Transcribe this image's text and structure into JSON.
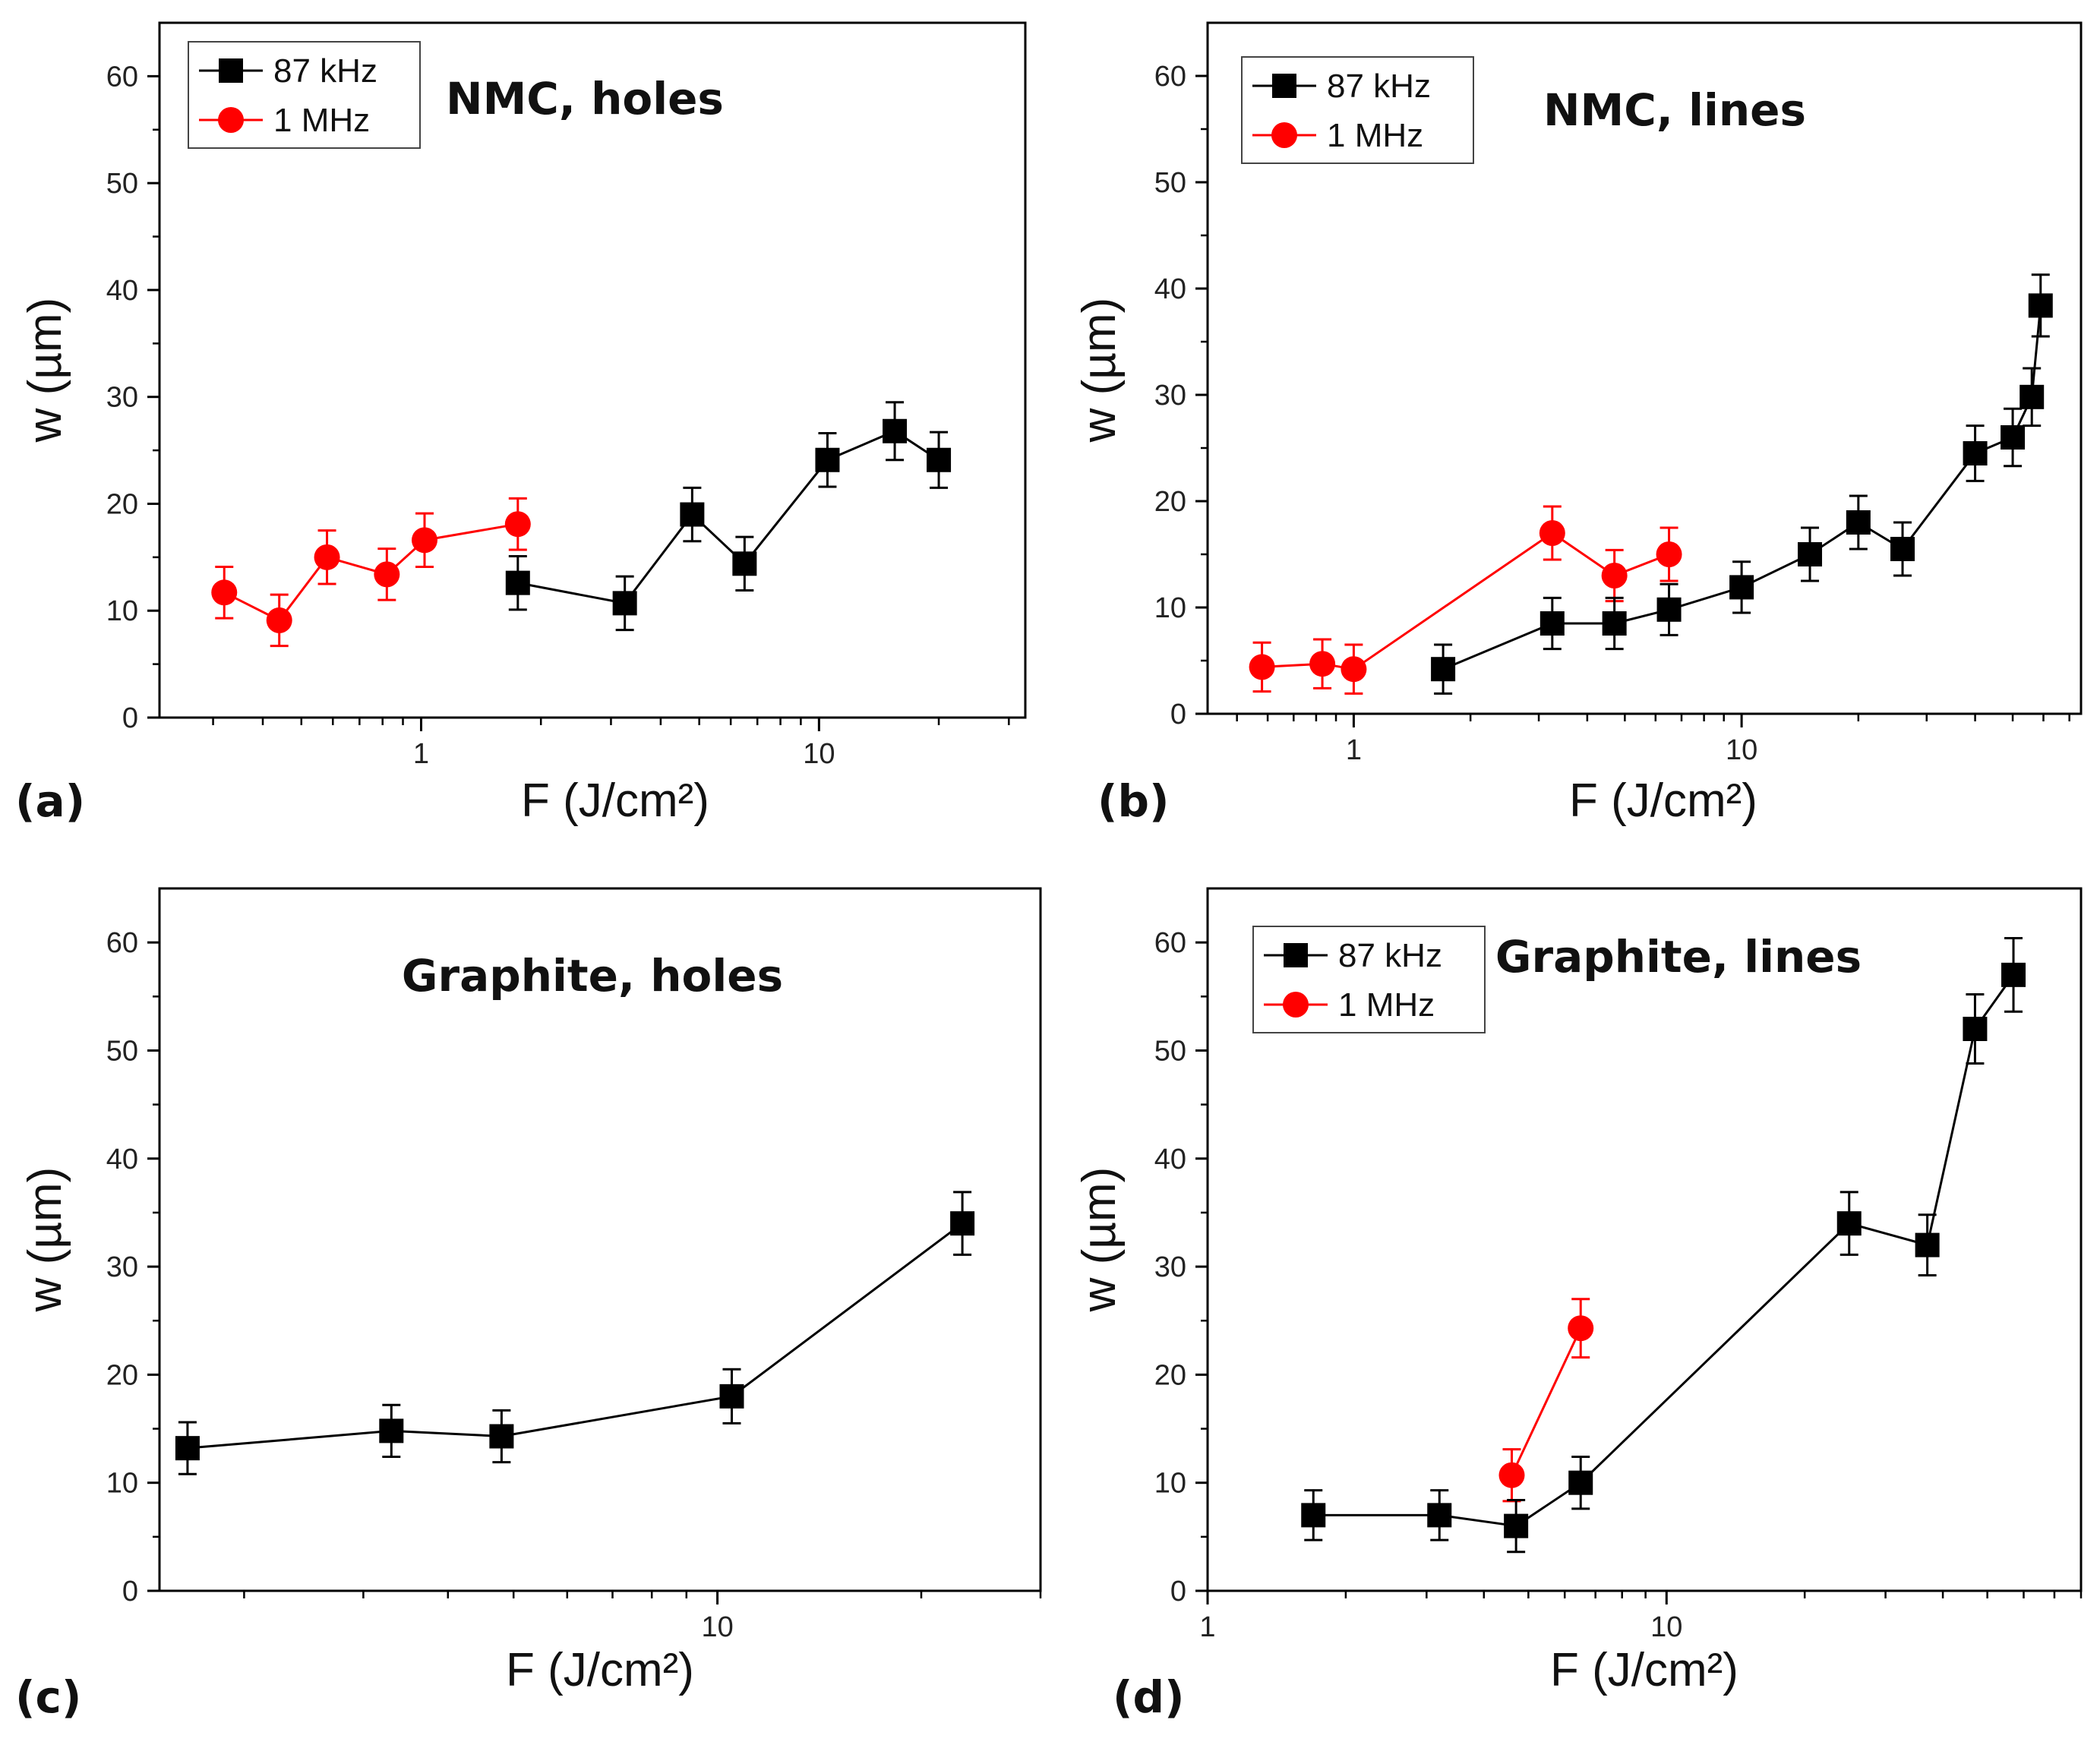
{
  "figure": {
    "colors": {
      "s87": "#000000",
      "s1": "#ff0000",
      "axis": "#000000"
    },
    "legend_labels": [
      "87 kHz",
      "1 MHz"
    ]
  },
  "chart_data": [
    {
      "type": "line",
      "panel_label": "(a)",
      "title": "NMC, holes",
      "xlabel": "F (J/cm²)",
      "ylabel": "w (µm)",
      "xscale": "log",
      "xlim": [
        0.22,
        33
      ],
      "ylim": [
        0,
        65
      ],
      "x_ticks": [
        1,
        10
      ],
      "x_tick_labels": [
        "1",
        "10"
      ],
      "y_ticks": [
        0,
        10,
        20,
        30,
        40,
        50,
        60
      ],
      "legend": true,
      "legend_position": "top-left",
      "series": [
        {
          "name": "87 kHz",
          "marker": "square",
          "color": "#000000",
          "x": [
            1.75,
            3.25,
            4.8,
            6.5,
            10.5,
            15.5,
            20
          ],
          "y": [
            12.6,
            10.7,
            19,
            14.4,
            24.1,
            26.8,
            24.1
          ],
          "err": [
            2.5,
            2.5,
            2.5,
            2.5,
            2.5,
            2.7,
            2.6
          ]
        },
        {
          "name": "1 MHz",
          "marker": "circle",
          "color": "#ff0000",
          "x": [
            0.32,
            0.44,
            0.58,
            0.82,
            1.02,
            1.75
          ],
          "y": [
            11.7,
            9.1,
            15,
            13.4,
            16.6,
            18.1
          ],
          "err": [
            2.4,
            2.4,
            2.5,
            2.4,
            2.5,
            2.4
          ]
        }
      ]
    },
    {
      "type": "line",
      "panel_label": "(b)",
      "title": "NMC, lines",
      "xlabel": "F (J/cm²)",
      "ylabel": "w (µm)",
      "xscale": "log",
      "xlim": [
        0.42,
        75
      ],
      "ylim": [
        0,
        65
      ],
      "x_ticks": [
        1,
        10
      ],
      "x_tick_labels": [
        "1",
        "10"
      ],
      "y_ticks": [
        0,
        10,
        20,
        30,
        40,
        50,
        60
      ],
      "legend": true,
      "legend_position": "top-left",
      "series": [
        {
          "name": "87 kHz",
          "marker": "square",
          "color": "#000000",
          "x": [
            1.7,
            3.25,
            4.7,
            6.5,
            10,
            15,
            20,
            26,
            40,
            50,
            56,
            59
          ],
          "y": [
            4.2,
            8.5,
            8.5,
            9.8,
            11.9,
            15,
            18,
            15.5,
            24.5,
            26,
            29.8,
            38.4
          ],
          "err": [
            2.3,
            2.4,
            2.4,
            2.4,
            2.4,
            2.5,
            2.5,
            2.5,
            2.6,
            2.7,
            2.7,
            2.9
          ]
        },
        {
          "name": "1 MHz",
          "marker": "circle",
          "color": "#ff0000",
          "x": [
            0.58,
            0.83,
            1.0,
            3.25,
            4.7,
            6.5
          ],
          "y": [
            4.4,
            4.7,
            4.2,
            17,
            13,
            15
          ],
          "err": [
            2.3,
            2.3,
            2.3,
            2.5,
            2.4,
            2.5
          ]
        }
      ]
    },
    {
      "type": "line",
      "panel_label": "(c)",
      "title": "Graphite, holes",
      "xlabel": "F (J/cm²)",
      "ylabel": "w (µm)",
      "xscale": "log",
      "xlim": [
        1.5,
        30
      ],
      "ylim": [
        0,
        65
      ],
      "x_ticks": [
        10
      ],
      "x_tick_labels": [
        "10"
      ],
      "y_ticks": [
        0,
        10,
        20,
        30,
        40,
        50,
        60
      ],
      "legend": false,
      "series": [
        {
          "name": "87 kHz",
          "marker": "square",
          "color": "#000000",
          "x": [
            1.65,
            3.3,
            4.8,
            10.5,
            23
          ],
          "y": [
            13.2,
            14.8,
            14.3,
            18,
            34
          ],
          "err": [
            2.4,
            2.4,
            2.4,
            2.5,
            2.9
          ]
        }
      ]
    },
    {
      "type": "line",
      "panel_label": "(d)",
      "title": "Graphite, lines",
      "xlabel": "F (J/cm²)",
      "ylabel": "w (µm)",
      "xscale": "log",
      "xlim": [
        1,
        80
      ],
      "ylim": [
        0,
        65
      ],
      "x_ticks": [
        1,
        10
      ],
      "x_tick_labels": [
        "1",
        "10"
      ],
      "y_ticks": [
        0,
        10,
        20,
        30,
        40,
        50,
        60
      ],
      "legend": true,
      "legend_position": "top-left",
      "series": [
        {
          "name": "87 kHz",
          "marker": "square",
          "color": "#000000",
          "x": [
            1.7,
            3.2,
            4.7,
            6.5,
            25,
            37,
            47,
            57
          ],
          "y": [
            7,
            7,
            6,
            10,
            34,
            32,
            52,
            57
          ],
          "err": [
            2.3,
            2.3,
            2.4,
            2.4,
            2.9,
            2.8,
            3.2,
            3.4
          ]
        },
        {
          "name": "1 MHz",
          "marker": "circle",
          "color": "#ff0000",
          "x": [
            4.6,
            6.5
          ],
          "y": [
            10.7,
            24.3
          ],
          "err": [
            2.4,
            2.7
          ]
        }
      ]
    }
  ]
}
